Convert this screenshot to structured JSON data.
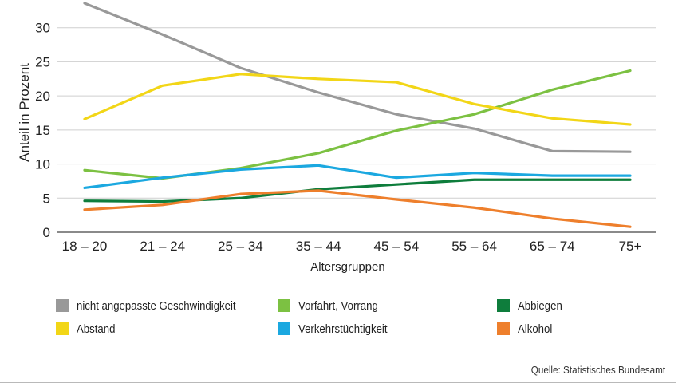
{
  "chart_data": {
    "type": "line",
    "categories": [
      "18 – 20",
      "21 – 24",
      "25 – 34",
      "35 – 44",
      "45 – 54",
      "55 – 64",
      "65 – 74",
      "75+"
    ],
    "ylabel": "Anteil in Prozent",
    "xlabel": "Altersgruppen",
    "ylim": [
      0,
      35
    ],
    "yticks": [
      "0",
      "5",
      "10",
      "15",
      "20",
      "25",
      "30",
      "35"
    ],
    "grid": true,
    "legend_position": "bottom",
    "series": [
      {
        "name": "nicht angepasste Geschwindigkeit",
        "color": "#999999",
        "values": [
          33.6,
          29.0,
          24.1,
          20.5,
          17.3,
          15.2,
          11.9,
          11.8
        ]
      },
      {
        "name": "Vorfahrt, Vorrang",
        "color": "#7cc142",
        "values": [
          9.1,
          7.9,
          9.4,
          11.6,
          14.9,
          17.3,
          20.9,
          23.7
        ]
      },
      {
        "name": "Abbiegen",
        "color": "#0e7d3c",
        "values": [
          4.6,
          4.5,
          5.0,
          6.3,
          7.0,
          7.7,
          7.7,
          7.7
        ]
      },
      {
        "name": "Abstand",
        "color": "#f2d617",
        "values": [
          16.6,
          21.5,
          23.2,
          22.5,
          22.0,
          18.8,
          16.7,
          15.8
        ]
      },
      {
        "name": "Verkehrstüchtigkeit",
        "color": "#1ba8e0",
        "values": [
          6.5,
          8.0,
          9.2,
          9.8,
          8.0,
          8.7,
          8.3,
          8.3
        ]
      },
      {
        "name": "Alkohol",
        "color": "#ee7f2c",
        "values": [
          3.3,
          4.0,
          5.6,
          6.1,
          4.8,
          3.6,
          2.0,
          0.8
        ]
      }
    ]
  },
  "source": "Quelle: Statistisches Bundesamt"
}
